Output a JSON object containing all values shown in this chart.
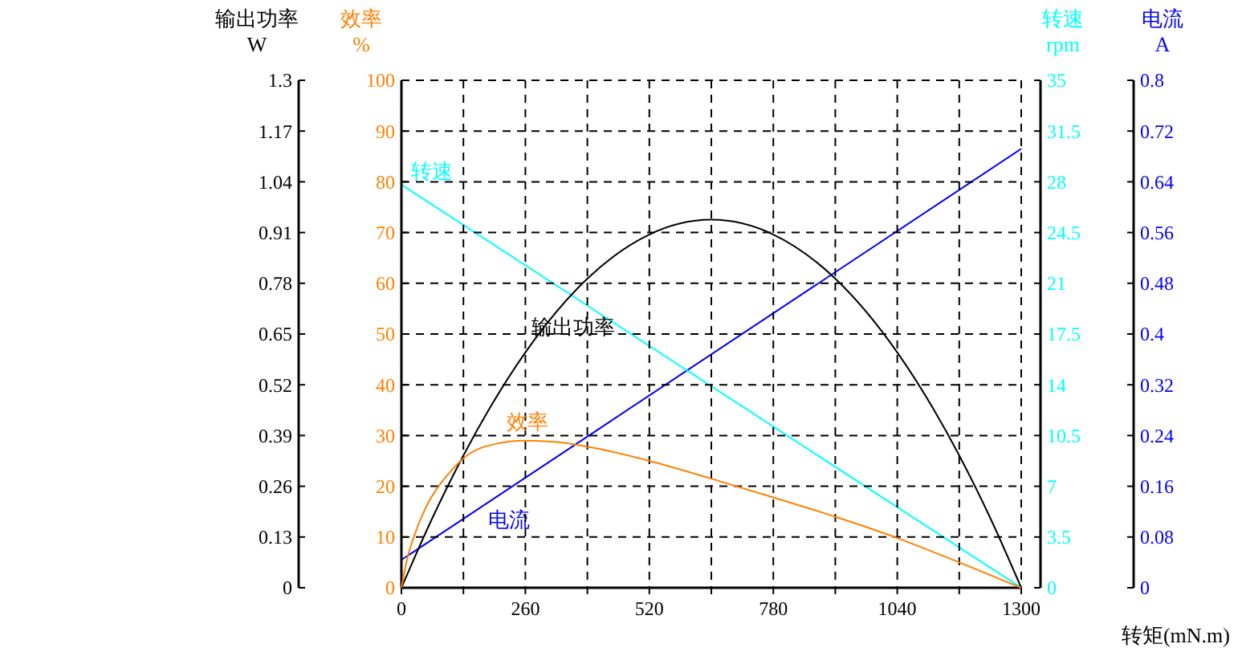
{
  "chart_data": [
    {
      "type": "line",
      "ylabel": "电流\nA",
      "xlim": [
        0,
        1300
      ],
      "ylim": [
        0,
        0.8
      ],
      "yticks": [
        0,
        0.08,
        0.16,
        0.24,
        0.32,
        0.4,
        0.48,
        0.56,
        0.64,
        0.72,
        0.8
      ],
      "tick_labels": "y",
      "line_style": "solid",
      "series": [
        {
          "name": "电流",
          "color": "#0000ff",
          "x": [
            0,
            1300
          ],
          "values": [
            0.044,
            0.692
          ]
        }
      ]
    },
    {
      "type": "line",
      "ylabel": "转速\nrpm",
      "xlim": [
        0,
        1300
      ],
      "ylim": [
        0,
        35
      ],
      "yticks": [
        0,
        3.5,
        7,
        10.5,
        14,
        17.5,
        21,
        24.5,
        28,
        31.5,
        35
      ],
      "tick_labels": "y",
      "line_style": "solid",
      "series": [
        {
          "name": "转速",
          "color": "#00ffff",
          "x": [
            0,
            1300
          ],
          "values": [
            27.8,
            0
          ]
        }
      ]
    },
    {
      "type": "line",
      "ylabel": "输出功率\nW",
      "xlim": [
        0,
        1300
      ],
      "ylim": [
        0,
        1.3
      ],
      "yticks": [
        0,
        0.13,
        0.26,
        0.39,
        0.52,
        0.65,
        0.78,
        0.91,
        1.04,
        1.17,
        1.3
      ],
      "tick_labels": "y",
      "line_style": "solid",
      "series": [
        {
          "name": "输出功率",
          "color": "#000000",
          "x": [
            0,
            65,
            130,
            260,
            390,
            520,
            650,
            780,
            910,
            1040,
            1170,
            1235,
            1300
          ],
          "values": [
            0,
            0.179,
            0.339,
            0.603,
            0.792,
            0.905,
            0.943,
            0.905,
            0.792,
            0.603,
            0.339,
            0.179,
            0
          ]
        }
      ]
    },
    {
      "type": "line",
      "xlabel": "转矩(mN.m)",
      "ylabel": "效率\n%",
      "xlim": [
        0,
        1300
      ],
      "xticks": [
        0,
        {
          "value": 130,
          "label": null
        },
        260,
        {
          "value": 390,
          "label": null
        },
        520,
        {
          "value": 650,
          "label": null
        },
        780,
        {
          "value": 910,
          "label": null
        },
        1040,
        {
          "value": 1170,
          "label": null
        },
        1300
      ],
      "ylim": [
        0,
        100
      ],
      "yticks": [
        0,
        10,
        20,
        30,
        40,
        50,
        60,
        70,
        80,
        90,
        100
      ],
      "grid": true,
      "line_style": "solid",
      "series": [
        {
          "name": "效率",
          "color": "#ff8000",
          "x": [
            0,
            13,
            26,
            52,
            78,
            104,
            130,
            195,
            260,
            325,
            390,
            520,
            650,
            780,
            910,
            1040,
            1170,
            1300
          ],
          "values": [
            0,
            6,
            10,
            16,
            20,
            23,
            25.5,
            28.3,
            29,
            28.7,
            27.8,
            25,
            21.5,
            17.8,
            14,
            9.8,
            5,
            0
          ]
        }
      ]
    }
  ]
}
